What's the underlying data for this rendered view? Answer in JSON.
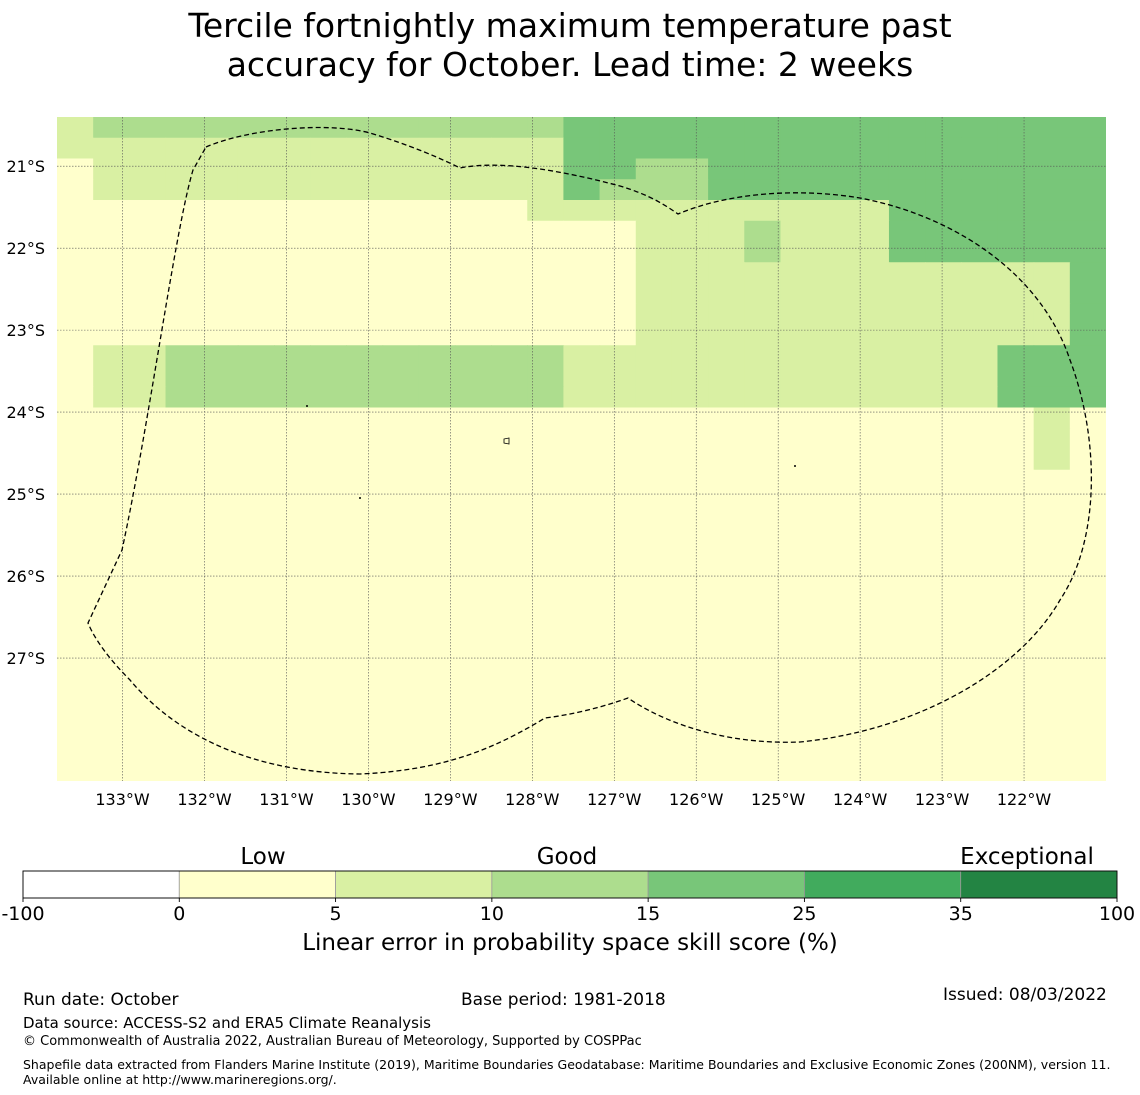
{
  "title": {
    "line1": "Tercile fortnightly maximum temperature past",
    "line2": "accuracy for October. Lead time: 2 weeks"
  },
  "map": {
    "lon_range": [
      -133.8,
      -121.0
    ],
    "lat_range": [
      -20.4,
      -28.5
    ],
    "cell_deg": 0.55,
    "lat_ticks": [
      {
        "value": -21,
        "label": "21°S"
      },
      {
        "value": -22,
        "label": "22°S"
      },
      {
        "value": -23,
        "label": "23°S"
      },
      {
        "value": -24,
        "label": "24°S"
      },
      {
        "value": -25,
        "label": "25°S"
      },
      {
        "value": -26,
        "label": "26°S"
      },
      {
        "value": -27,
        "label": "27°S"
      }
    ],
    "lon_ticks": [
      {
        "value": -133,
        "label": "133°W"
      },
      {
        "value": -132,
        "label": "132°W"
      },
      {
        "value": -131,
        "label": "131°W"
      },
      {
        "value": -130,
        "label": "130°W"
      },
      {
        "value": -129,
        "label": "129°W"
      },
      {
        "value": -128,
        "label": "128°W"
      },
      {
        "value": -127,
        "label": "127°W"
      },
      {
        "value": -126,
        "label": "126°W"
      },
      {
        "value": -125,
        "label": "125°W"
      },
      {
        "value": -124,
        "label": "124°W"
      },
      {
        "value": -123,
        "label": "123°W"
      },
      {
        "value": -122,
        "label": "122°W"
      }
    ],
    "grid_classes": [
      "23333333333333444444444444444",
      "22222222222222444444444444444",
      "12222222222222443344444444444",
      "12222222222222433344444444444",
      "11111111111112222222222444444",
      "11111111111111112223222444444",
      "11111111111111112223222444444",
      "11111111111111112222222222224",
      "11111111111111112222222222224",
      "11111111111111112222222222224",
      "11111111111111112222222222224",
      "12233333333333222222222222444",
      "12233333333333222222222222444",
      "12233333333333222222222222444",
      "11111111111111111111111111121",
      "11111111111111111111111111121",
      "11111111111111111111111111121",
      "11111111111111111111111111111",
      "11111111111111111111111111111",
      "11111111111111111111111111111",
      "11111111111111111111111111111",
      "11111111111111111111111111111",
      "11111111111111111111111111111",
      "11111111111111111111111111111",
      "11111111111111111111111111111",
      "11111111111111111111111111111",
      "11111111111111111111111111111",
      "11111111111111111111111111111",
      "11111111111111111111111111111",
      "11111111111111111111111111111",
      "11111111111111111111111111111",
      "11111111111111111111111111111"
    ]
  },
  "colorbar": {
    "categories": [
      {
        "label": "Low",
        "at": 1
      },
      {
        "label": "Good",
        "at": 3
      },
      {
        "label": "Exceptional",
        "at": 6
      }
    ],
    "bins": [
      {
        "from": "-100",
        "to": "0",
        "color": "#ffffff"
      },
      {
        "from": "0",
        "to": "5",
        "color": "#ffffcc"
      },
      {
        "from": "5",
        "to": "10",
        "color": "#d9f0a3"
      },
      {
        "from": "10",
        "to": "15",
        "color": "#addd8e"
      },
      {
        "from": "15",
        "to": "25",
        "color": "#78c679"
      },
      {
        "from": "25",
        "to": "35",
        "color": "#41ab5d"
      },
      {
        "from": "35",
        "to": "100",
        "color": "#238443"
      }
    ],
    "tick_labels": [
      "-100",
      "0",
      "5",
      "10",
      "15",
      "25",
      "35",
      "100"
    ],
    "title": "Linear error in probability space skill score (%)"
  },
  "footer": {
    "run_date": "Run date: October",
    "base_period": "Base period: 1981-2018",
    "issued": "Issued: 08/03/2022",
    "data_source": "Data source: ACCESS-S2 and ERA5 Climate Reanalysis",
    "copyright": "© Commonwealth of Australia 2022, Australian Bureau of Meteorology, Supported by COSPPac",
    "shapefile": "Shapefile data extracted from Flanders Marine Institute (2019), Maritime Boundaries Geodatabase: Maritime Boundaries and Exclusive Economic Zones (200NM), version 11. Available online at http://www.marineregions.org/."
  }
}
